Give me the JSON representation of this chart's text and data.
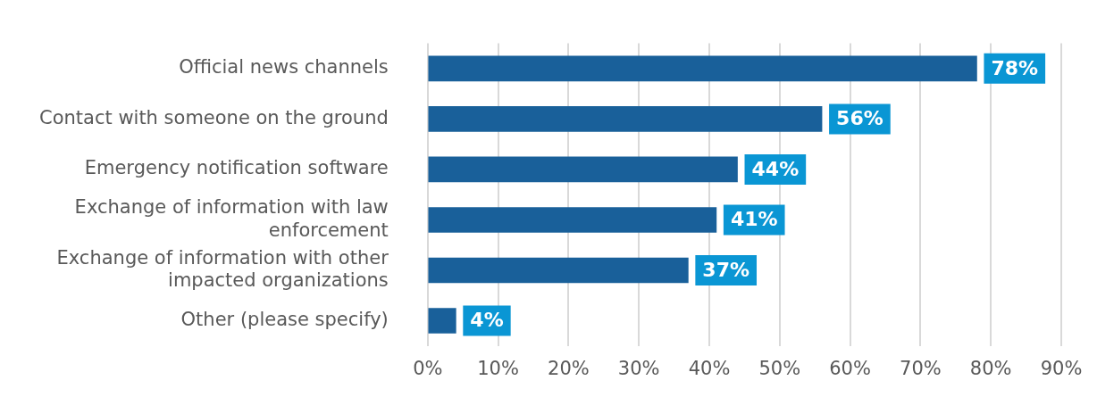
{
  "chart_data": {
    "type": "bar",
    "orientation": "horizontal",
    "categories": [
      "Official news channels",
      "Contact with someone on the ground",
      "Emergency notification software",
      "Exchange of information with law enforcement",
      "Exchange of information with other impacted organizations",
      "Other (please specify)"
    ],
    "values": [
      78,
      56,
      44,
      41,
      37,
      4
    ],
    "color": "#19609a",
    "value_labels": [
      "78%",
      "56%",
      "44%",
      "41%",
      "37%",
      "4%"
    ],
    "xlim": [
      0,
      90
    ],
    "xticks": [
      {
        "value": 0,
        "label": "0%"
      },
      {
        "value": 10,
        "label": "10%"
      },
      {
        "value": 20,
        "label": "20%"
      },
      {
        "value": 30,
        "label": "30%"
      },
      {
        "value": 40,
        "label": "40%"
      },
      {
        "value": 50,
        "label": "50%"
      },
      {
        "value": 60,
        "label": "60%"
      },
      {
        "value": 70,
        "label": "70%"
      },
      {
        "value": 80,
        "label": "80%"
      },
      {
        "value": 90,
        "label": "90%"
      }
    ],
    "grid": "x",
    "legend": false
  }
}
